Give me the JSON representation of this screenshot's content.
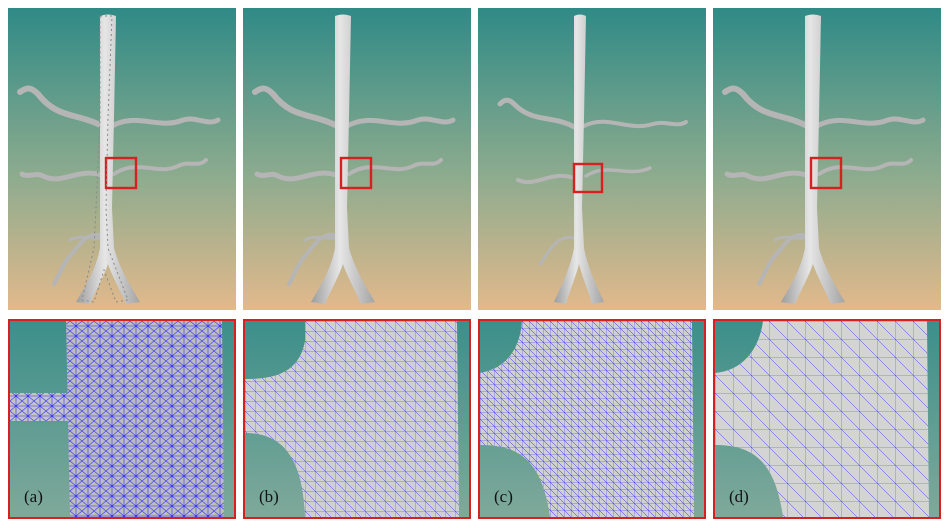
{
  "figure": {
    "columns": [
      {
        "id": "a",
        "label": "(a)"
      },
      {
        "id": "b",
        "label": "(b)"
      },
      {
        "id": "c",
        "label": "(c)"
      },
      {
        "id": "d",
        "label": "(d)"
      }
    ]
  },
  "colors": {
    "background_top": "#2f8a86",
    "background_bottom": "#e2b98c",
    "vessel": "#c9c9c9",
    "mesh": "#2c2cff",
    "highlight": "#d82020"
  }
}
